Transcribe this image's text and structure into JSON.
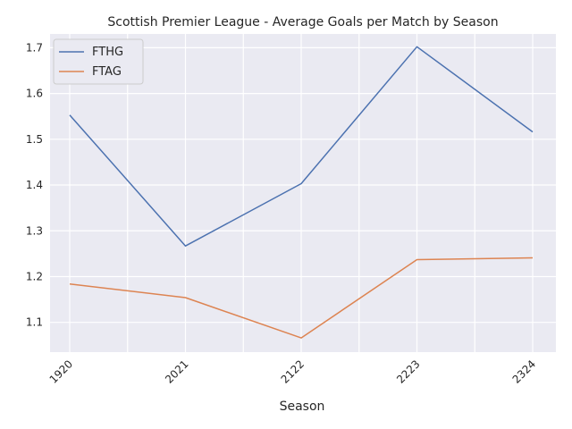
{
  "chart_data": {
    "type": "line",
    "title": "Scottish Premier League - Average Goals per Match by Season",
    "xlabel": "Season",
    "ylabel": "",
    "categories": [
      "1920",
      "2021",
      "2122",
      "2223",
      "2324"
    ],
    "yticks": [
      "1.1",
      "1.2",
      "1.3",
      "1.4",
      "1.5",
      "1.6",
      "1.7"
    ],
    "ylim": [
      1.035,
      1.73
    ],
    "grid": true,
    "legend_position": "top-left",
    "series": [
      {
        "name": "FTHG",
        "color": "#4c72b0",
        "values": [
          1.553,
          1.267,
          1.403,
          1.702,
          1.516
        ]
      },
      {
        "name": "FTAG",
        "color": "#dd8452",
        "values": [
          1.184,
          1.154,
          1.066,
          1.237,
          1.241
        ]
      }
    ]
  }
}
